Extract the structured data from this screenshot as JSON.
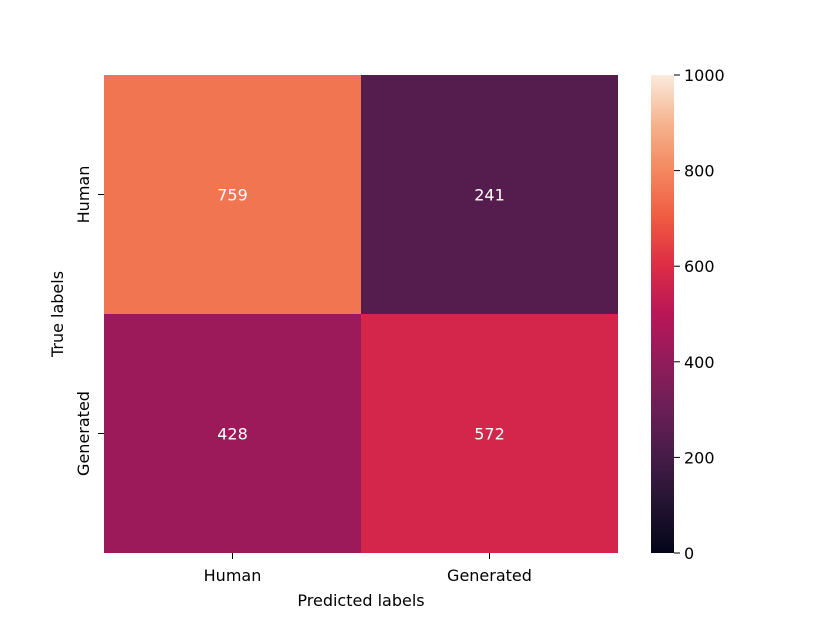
{
  "chart_data": {
    "type": "heatmap",
    "title": "",
    "xlabel": "Predicted labels",
    "ylabel": "True labels",
    "x_categories": [
      "Human",
      "Generated"
    ],
    "y_categories": [
      "Human",
      "Generated"
    ],
    "values": [
      [
        759,
        241
      ],
      [
        428,
        572
      ]
    ],
    "colorbar": {
      "min": 0,
      "max": 1000,
      "ticks": [
        "0",
        "200",
        "400",
        "600",
        "800",
        "1000"
      ],
      "colormap": "rocket"
    },
    "cell_text_color": "#ffffff"
  }
}
